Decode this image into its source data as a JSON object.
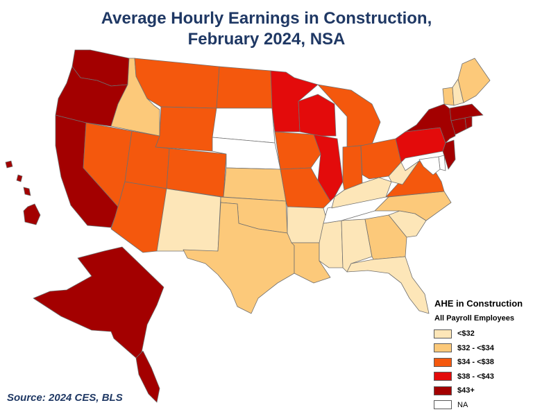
{
  "title_line1": "Average Hourly Earnings in Construction,",
  "title_line2": "February 2024, NSA",
  "legend": {
    "title": "AHE in Construction",
    "subtitle": "All Payroll Employees",
    "items": [
      {
        "label": "<$32",
        "color": "#fde6b8"
      },
      {
        "label": "$32 - <$34",
        "color": "#fcc97a"
      },
      {
        "label": "$34 - <$38",
        "color": "#f4580d"
      },
      {
        "label": "$38 - <$43",
        "color": "#e30b0b"
      },
      {
        "label": "$43+",
        "color": "#a30000"
      },
      {
        "label": "NA",
        "color": "#ffffff"
      }
    ]
  },
  "source": "Source: 2024 CES, BLS",
  "state_bins": {
    "WA": 4,
    "OR": 4,
    "CA": 4,
    "AK": 4,
    "HI": 4,
    "NY": 4,
    "MA": 4,
    "CT": 4,
    "RI": 4,
    "NJ": 4,
    "MN": 3,
    "WI": 3,
    "IL": 3,
    "PA": 3,
    "MT": 2,
    "ND": 2,
    "WY": 2,
    "NV": 2,
    "UT": 2,
    "CO": 2,
    "AZ": 2,
    "IA": 2,
    "MO": 2,
    "MI": 2,
    "IN": 2,
    "OH": 2,
    "VA": 2,
    "ID": 1,
    "KS": 1,
    "OK": 1,
    "TX": 1,
    "LA": 1,
    "GA": 1,
    "NC": 1,
    "ME": 1,
    "VT": 1,
    "NM": 0,
    "AR": 0,
    "MS": 0,
    "AL": 0,
    "FL": 0,
    "SC": 0,
    "KY": 0,
    "WV": 0,
    "NH": 0,
    "SD": 5,
    "NE": 5,
    "TN": 5,
    "DE": 5,
    "MD": 5
  }
}
